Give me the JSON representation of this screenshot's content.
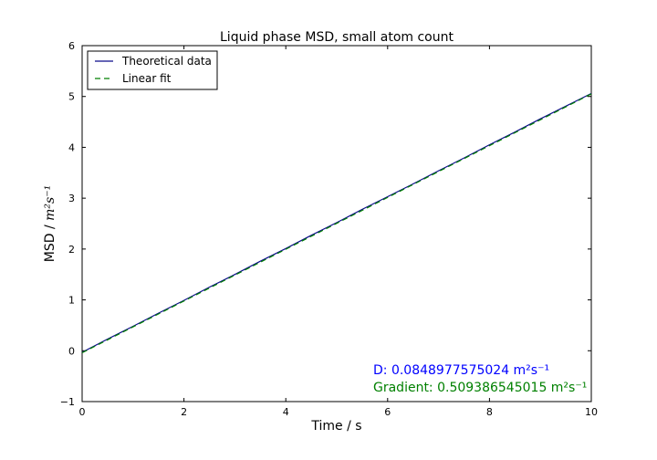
{
  "chart_data": {
    "type": "line",
    "title": "Liquid phase MSD, small atom count",
    "xlabel": "Time / s",
    "ylabel_main": "MSD / ",
    "ylabel_unit": "m²s⁻¹",
    "xlim": [
      0,
      10
    ],
    "ylim": [
      -1,
      6
    ],
    "xticks": [
      0,
      2,
      4,
      6,
      8,
      10
    ],
    "yticks": [
      -1,
      0,
      1,
      2,
      3,
      4,
      5,
      6
    ],
    "xtick_labels": [
      "0",
      "2",
      "4",
      "6",
      "8",
      "10"
    ],
    "ytick_labels": [
      "−1",
      "0",
      "1",
      "2",
      "3",
      "4",
      "5",
      "6"
    ],
    "grid": false,
    "legend_position": "top-left",
    "series": [
      {
        "name": "Theoretical data",
        "style": "solid",
        "color": "#0b0b8a",
        "x": [
          0,
          0.5,
          1,
          1.5,
          2,
          2.5,
          3,
          3.5,
          4,
          4.5,
          5,
          5.5,
          6,
          6.5,
          7,
          7.5,
          8,
          8.5,
          9,
          9.5,
          10
        ],
        "y": [
          -0.03,
          0.23,
          0.48,
          0.74,
          0.99,
          1.25,
          1.5,
          1.76,
          2.01,
          2.27,
          2.52,
          2.78,
          3.03,
          3.28,
          3.54,
          3.79,
          4.05,
          4.3,
          4.56,
          4.81,
          5.06
        ]
      },
      {
        "name": "Linear fit",
        "style": "dashed",
        "color": "#008000",
        "x": [
          0,
          10
        ],
        "y": [
          -0.04,
          5.05
        ]
      }
    ],
    "annotations": [
      {
        "text": "D: 0.0848977575024 m²s⁻¹",
        "color": "#0000ff"
      },
      {
        "text": "Gradient: 0.509386545015 m²s⁻¹",
        "color": "#008000"
      }
    ]
  }
}
